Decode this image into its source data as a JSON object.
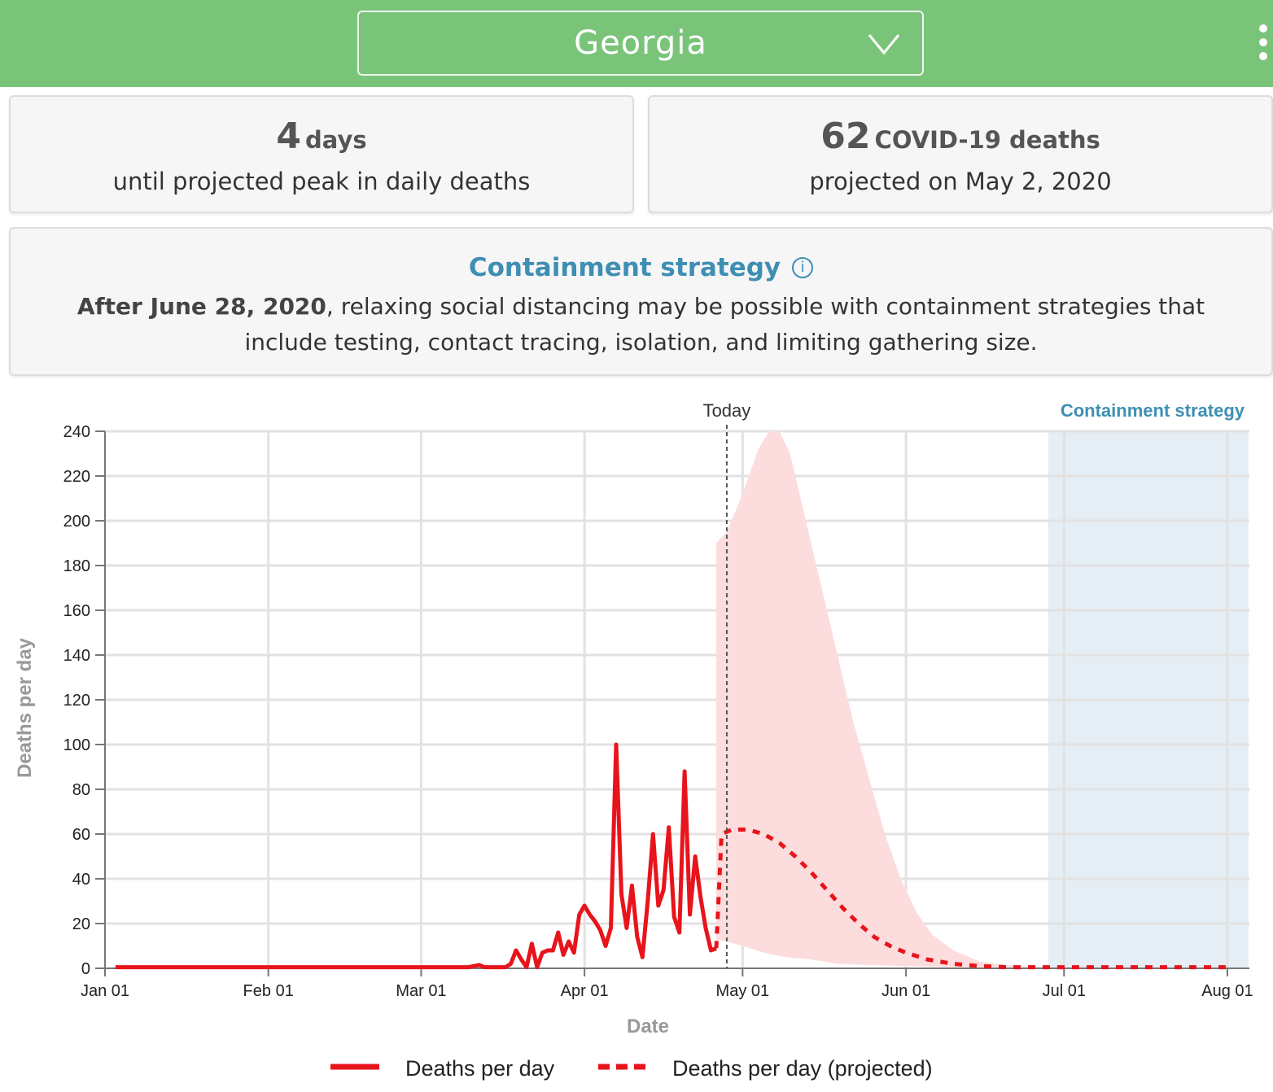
{
  "header": {
    "selected_state": "Georgia",
    "menu_icon": "kebab-menu-icon",
    "dropdown_icon": "chevron-down-icon",
    "background_color": "#7ac47a"
  },
  "peak_card": {
    "value": "4",
    "unit": "days",
    "description": "until projected peak in daily deaths"
  },
  "deaths_card": {
    "value": "62",
    "unit": "COVID-19 deaths",
    "description": "projected on May 2, 2020"
  },
  "containment": {
    "title": "Containment strategy",
    "info_icon": "i",
    "date_bold": "After June 28, 2020",
    "text_part1": ", relaxing social distancing may be possible with containment strategies that",
    "text_part2": "include testing, contact tracing, isolation, and limiting gathering size.",
    "title_color": "#3f8fb3"
  },
  "chart_data": {
    "type": "line",
    "xlabel": "Date",
    "ylabel": "Deaths per day",
    "ylim": [
      0,
      240
    ],
    "xlim": [
      "2020-01-01",
      "2020-08-01"
    ],
    "yticks": [
      0,
      20,
      40,
      60,
      80,
      100,
      120,
      140,
      160,
      180,
      200,
      220,
      240
    ],
    "xticks": [
      {
        "label": "Jan 01",
        "date": "2020-01-01"
      },
      {
        "label": "Feb 01",
        "date": "2020-02-01"
      },
      {
        "label": "Mar 01",
        "date": "2020-03-01"
      },
      {
        "label": "Apr 01",
        "date": "2020-04-01"
      },
      {
        "label": "May 01",
        "date": "2020-05-01"
      },
      {
        "label": "Jun 01",
        "date": "2020-06-01"
      },
      {
        "label": "Jul 01",
        "date": "2020-07-01"
      },
      {
        "label": "Aug 01",
        "date": "2020-08-01"
      }
    ],
    "grid": true,
    "today_label": "Today",
    "today_date": "2020-04-28",
    "containment_label": "Containment strategy",
    "containment_start": "2020-06-28",
    "containment_end": "2020-08-05",
    "colors": {
      "observed": "#e8141c",
      "band": "#fcdcdc",
      "containment": "#e5eef4",
      "containment_text": "#3f8fb3"
    },
    "legend_position": "bottom",
    "series": [
      {
        "name": "Deaths per day",
        "style": "solid",
        "points": [
          [
            "2020-01-03",
            0.5
          ],
          [
            "2020-03-10",
            0.5
          ],
          [
            "2020-03-12",
            1.5
          ],
          [
            "2020-03-13",
            0.5
          ],
          [
            "2020-03-17",
            0.5
          ],
          [
            "2020-03-18",
            2
          ],
          [
            "2020-03-19",
            8
          ],
          [
            "2020-03-20",
            4
          ],
          [
            "2020-03-21",
            0.5
          ],
          [
            "2020-03-22",
            11
          ],
          [
            "2020-03-23",
            0.5
          ],
          [
            "2020-03-24",
            7
          ],
          [
            "2020-03-25",
            8
          ],
          [
            "2020-03-26",
            8
          ],
          [
            "2020-03-27",
            16
          ],
          [
            "2020-03-28",
            6
          ],
          [
            "2020-03-29",
            12
          ],
          [
            "2020-03-30",
            7
          ],
          [
            "2020-03-31",
            24
          ],
          [
            "2020-04-01",
            28
          ],
          [
            "2020-04-02",
            24
          ],
          [
            "2020-04-03",
            21
          ],
          [
            "2020-04-04",
            17
          ],
          [
            "2020-04-05",
            10
          ],
          [
            "2020-04-06",
            18
          ],
          [
            "2020-04-07",
            100
          ],
          [
            "2020-04-08",
            33
          ],
          [
            "2020-04-09",
            18
          ],
          [
            "2020-04-10",
            37
          ],
          [
            "2020-04-11",
            14
          ],
          [
            "2020-04-12",
            5
          ],
          [
            "2020-04-13",
            30
          ],
          [
            "2020-04-14",
            60
          ],
          [
            "2020-04-15",
            28
          ],
          [
            "2020-04-16",
            35
          ],
          [
            "2020-04-17",
            63
          ],
          [
            "2020-04-18",
            23
          ],
          [
            "2020-04-19",
            16
          ],
          [
            "2020-04-20",
            88
          ],
          [
            "2020-04-21",
            24
          ],
          [
            "2020-04-22",
            50
          ],
          [
            "2020-04-23",
            32
          ],
          [
            "2020-04-24",
            18
          ],
          [
            "2020-04-25",
            8
          ],
          [
            "2020-04-26",
            9
          ]
        ]
      },
      {
        "name": "Deaths per day (projected)",
        "style": "dashed",
        "points": [
          [
            "2020-04-26",
            9
          ],
          [
            "2020-04-27",
            60
          ],
          [
            "2020-04-28",
            61
          ],
          [
            "2020-04-29",
            62
          ],
          [
            "2020-05-02",
            62
          ],
          [
            "2020-05-05",
            60
          ],
          [
            "2020-05-08",
            56
          ],
          [
            "2020-05-11",
            50
          ],
          [
            "2020-05-14",
            43
          ],
          [
            "2020-05-17",
            35
          ],
          [
            "2020-05-20",
            27
          ],
          [
            "2020-05-23",
            20
          ],
          [
            "2020-05-26",
            14
          ],
          [
            "2020-05-29",
            10
          ],
          [
            "2020-06-01",
            7
          ],
          [
            "2020-06-05",
            4
          ],
          [
            "2020-06-10",
            2
          ],
          [
            "2020-06-15",
            1
          ],
          [
            "2020-06-20",
            0.5
          ],
          [
            "2020-08-01",
            0.5
          ]
        ]
      }
    ],
    "uncertainty_band": {
      "upper": [
        [
          "2020-04-26",
          190
        ],
        [
          "2020-04-28",
          195
        ],
        [
          "2020-05-01",
          212
        ],
        [
          "2020-05-04",
          232
        ],
        [
          "2020-05-06",
          240
        ],
        [
          "2020-05-08",
          240
        ],
        [
          "2020-05-10",
          230
        ],
        [
          "2020-05-13",
          200
        ],
        [
          "2020-05-16",
          170
        ],
        [
          "2020-05-19",
          140
        ],
        [
          "2020-05-22",
          110
        ],
        [
          "2020-05-25",
          85
        ],
        [
          "2020-05-28",
          60
        ],
        [
          "2020-05-31",
          40
        ],
        [
          "2020-06-03",
          25
        ],
        [
          "2020-06-06",
          15
        ],
        [
          "2020-06-10",
          8
        ],
        [
          "2020-06-15",
          3
        ],
        [
          "2020-06-22",
          1
        ],
        [
          "2020-07-01",
          0.5
        ]
      ],
      "lower": [
        [
          "2020-04-26",
          13
        ],
        [
          "2020-04-28",
          12
        ],
        [
          "2020-05-01",
          10
        ],
        [
          "2020-05-05",
          7
        ],
        [
          "2020-05-09",
          5
        ],
        [
          "2020-05-14",
          4
        ],
        [
          "2020-05-19",
          2
        ],
        [
          "2020-05-25",
          1.5
        ],
        [
          "2020-06-01",
          1
        ],
        [
          "2020-06-10",
          0.5
        ],
        [
          "2020-07-01",
          0.5
        ]
      ]
    }
  }
}
